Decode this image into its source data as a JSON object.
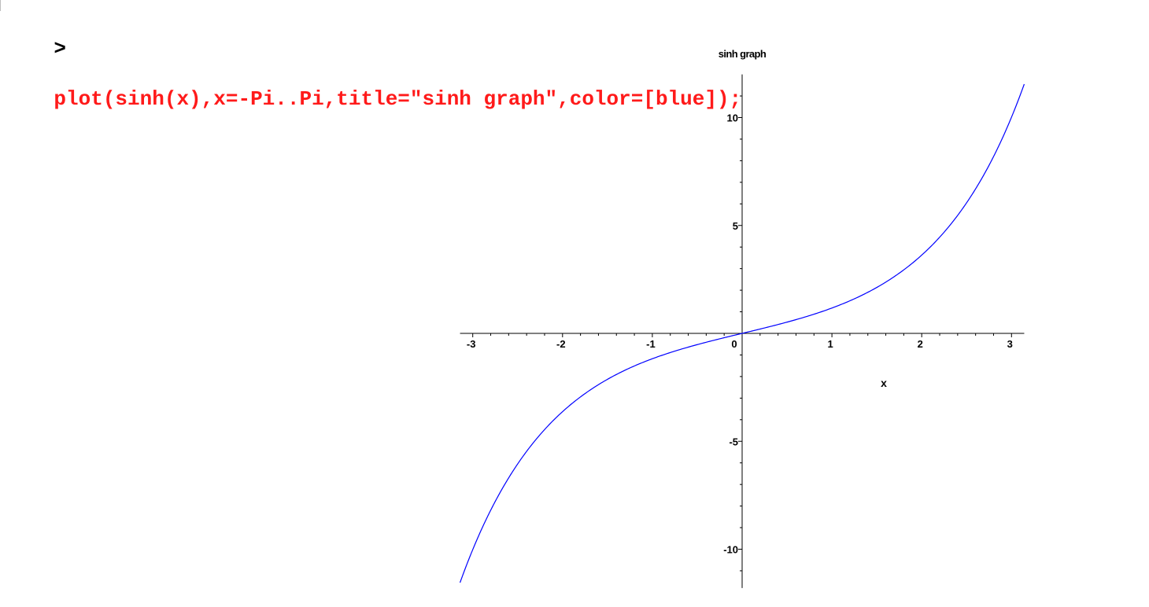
{
  "worksheet": {
    "prompt": ">",
    "command": "plot(sinh(x),x=-Pi..Pi,title=\"sinh graph\",color=[blue]);"
  },
  "colors": {
    "command_text": "#ff1a1a",
    "curve": "#0000ff",
    "axes": "#000000"
  },
  "chart_data": {
    "type": "line",
    "function": "sinh(x)",
    "title": "sinh graph",
    "xlabel": "x",
    "ylabel": "",
    "xlim": [
      -3.14159,
      3.14159
    ],
    "ylim": [
      -11.8,
      12
    ],
    "x_ticks": [
      -3,
      -2,
      -1,
      0,
      1,
      2,
      3
    ],
    "x_tick_labels": [
      "-3",
      "-2",
      "-1",
      "0",
      "1",
      "2",
      "3"
    ],
    "y_ticks": [
      -10,
      -5,
      5,
      10
    ],
    "y_tick_labels": [
      "-10",
      "-5",
      "5",
      "10"
    ],
    "grid": false,
    "legend": "none",
    "series": [
      {
        "color": "#0000ff",
        "x": [
          -3.14159,
          -3.0,
          -2.75,
          -2.5,
          -2.25,
          -2.0,
          -1.75,
          -1.5,
          -1.25,
          -1.0,
          -0.75,
          -0.5,
          -0.25,
          0.0,
          0.25,
          0.5,
          0.75,
          1.0,
          1.25,
          1.5,
          1.75,
          2.0,
          2.25,
          2.5,
          2.75,
          3.0,
          3.14159
        ],
        "y": [
          -11.55,
          -10.02,
          -7.79,
          -6.05,
          -4.69,
          -3.63,
          -2.79,
          -2.13,
          -1.6,
          -1.18,
          -0.82,
          -0.52,
          -0.25,
          0.0,
          0.25,
          0.52,
          0.82,
          1.18,
          1.6,
          2.13,
          2.79,
          3.63,
          4.69,
          6.05,
          7.79,
          10.02,
          11.55
        ]
      }
    ]
  }
}
